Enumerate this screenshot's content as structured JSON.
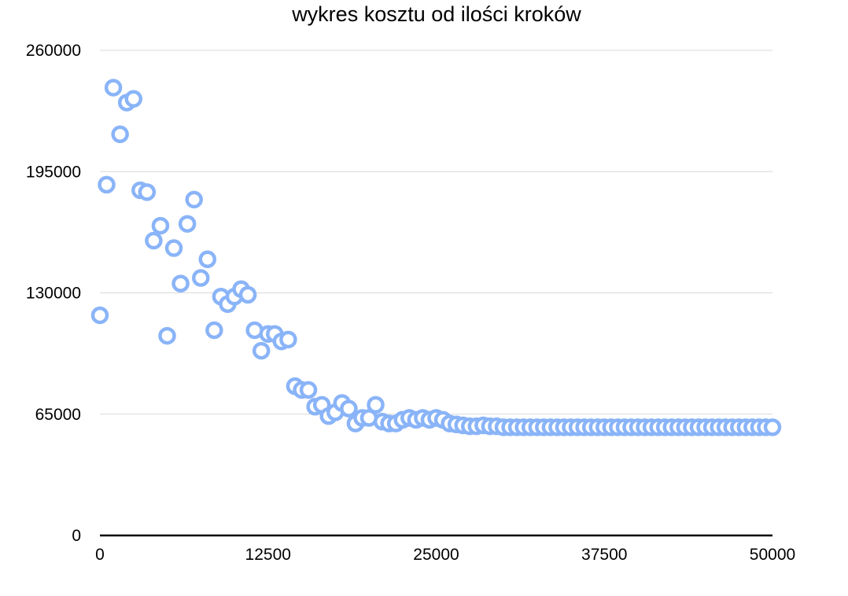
{
  "chart_data": {
    "type": "scatter",
    "title": "wykres kosztu od ilości kroków",
    "xlabel": "",
    "ylabel": "",
    "xlim": [
      0,
      50000
    ],
    "ylim": [
      0,
      260000
    ],
    "x_ticks": [
      "0",
      "12500",
      "25000",
      "37500",
      "50000"
    ],
    "y_ticks": [
      "0",
      "65000",
      "130000",
      "195000",
      "260000"
    ],
    "grid": true,
    "legend": "none",
    "marker_color": "#8AB4F8",
    "series": [
      {
        "x": [
          0,
          500,
          1000,
          1500,
          2000,
          2500,
          3000,
          3500,
          4000,
          4500,
          5000,
          5500,
          6000,
          6500,
          7000,
          7500,
          8000,
          8500,
          9000,
          9500,
          10000,
          10500,
          11000,
          11500,
          12000,
          12500,
          13000,
          13500,
          14000,
          14500,
          15000,
          15500,
          16000,
          16500,
          17000,
          17500,
          18000,
          18500,
          19000,
          19500,
          20000,
          20500,
          21000,
          21500,
          22000,
          22500,
          23000,
          23500,
          24000,
          24500,
          25000,
          25500,
          26000,
          26500,
          27000,
          27500,
          28000,
          28500,
          29000,
          29500,
          30000,
          30500,
          31000,
          31500,
          32000,
          32500,
          33000,
          33500,
          34000,
          34500,
          35000,
          35500,
          36000,
          36500,
          37000,
          37500,
          38000,
          38500,
          39000,
          39500,
          40000,
          40500,
          41000,
          41500,
          42000,
          42500,
          43000,
          43500,
          44000,
          44500,
          45000,
          45500,
          46000,
          46500,
          47000,
          47500,
          48000,
          48500,
          49000,
          49500,
          50000
        ],
        "y": [
          118000,
          188000,
          240000,
          215000,
          232000,
          234000,
          185000,
          184000,
          158000,
          166000,
          107000,
          154000,
          135000,
          167000,
          180000,
          138000,
          148000,
          110000,
          128000,
          124000,
          128000,
          132000,
          129000,
          110000,
          99000,
          108000,
          108000,
          104000,
          105000,
          80000,
          78000,
          78000,
          69000,
          70000,
          64000,
          66000,
          71000,
          68000,
          60000,
          63000,
          63000,
          70000,
          61000,
          60000,
          60000,
          62000,
          63000,
          62000,
          63000,
          62000,
          63000,
          62000,
          60000,
          59500,
          59000,
          58500,
          58500,
          59000,
          58500,
          58500,
          58000,
          58000,
          58000,
          58000,
          58000,
          58000,
          58000,
          58000,
          58000,
          58000,
          58000,
          58000,
          58000,
          58000,
          58000,
          58000,
          58000,
          58000,
          58000,
          58000,
          58000,
          58000,
          58000,
          58000,
          58000,
          58000,
          58000,
          58000,
          58000,
          58000,
          58000,
          58000,
          58000,
          58000,
          58000,
          58000,
          58000,
          58000,
          58000,
          58000,
          58000
        ]
      }
    ]
  }
}
